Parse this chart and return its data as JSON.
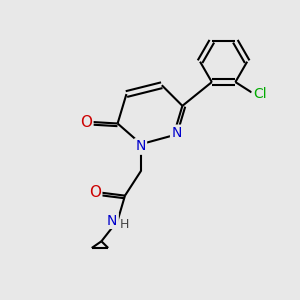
{
  "bg_color": "#e8e8e8",
  "atom_colors": {
    "C": "#000000",
    "N": "#0000cc",
    "O": "#cc0000",
    "Cl": "#00aa00",
    "H": "#444444"
  },
  "bond_color": "#000000",
  "fig_width": 3.0,
  "fig_height": 3.0,
  "xlim": [
    0,
    10
  ],
  "ylim": [
    0,
    10
  ]
}
